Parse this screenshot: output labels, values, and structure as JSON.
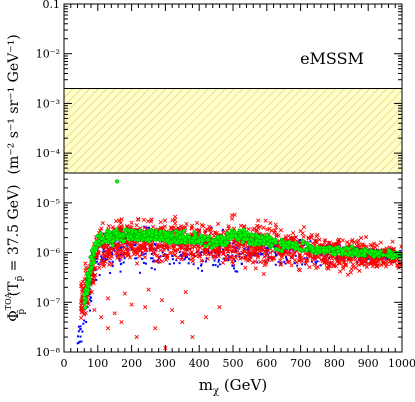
{
  "chart_data": {
    "type": "scatter",
    "title": "",
    "annotation": "eMSSM",
    "xlabel": "m",
    "xlabel_sub": "χ",
    "xlabel_unit": " (GeV)",
    "ylabel_prefix": "Φ",
    "ylabel_prefix_sub": "p̄",
    "ylabel_prefix_sup": "TOA",
    "ylabel_cond": " (T",
    "ylabel_cond_sub": "p̄",
    "ylabel_cond_tail": " = 37.5 GeV)",
    "ylabel_units": "(m⁻² s⁻¹ sr⁻¹ GeV⁻¹)",
    "xlim": [
      0,
      1000
    ],
    "ylim_log10": [
      -8,
      -1
    ],
    "y_scale": "log",
    "x_ticks": [
      0,
      100,
      200,
      300,
      400,
      500,
      600,
      700,
      800,
      900,
      1000
    ],
    "y_tick_labels": [
      {
        "value": 0.1,
        "label": "0.1"
      },
      {
        "value": 0.01,
        "label": "10⁻²"
      },
      {
        "value": 0.001,
        "label": "10⁻³"
      },
      {
        "value": 0.0001,
        "label": "10⁻⁴"
      },
      {
        "value": 1e-05,
        "label": "10⁻⁵"
      },
      {
        "value": 1e-06,
        "label": "10⁻⁶"
      },
      {
        "value": 1e-07,
        "label": "10⁻⁷"
      },
      {
        "value": 1e-08,
        "label": "10⁻⁸"
      }
    ],
    "band": {
      "y_low": 3.98e-05,
      "y_high": 0.002
    },
    "colors": {
      "annotation": "#ff00ff",
      "band_fill": "#ffffcc",
      "band_hatch": "#e8c85a",
      "red": "#ff0000",
      "blue": "#0000ff",
      "green": "#00ff00",
      "green_ring": "#00a000"
    },
    "series": [
      {
        "marker": "cross",
        "envelope_upper": [
          [
            50,
            5e-07
          ],
          [
            75,
            1.3e-06
          ],
          [
            100,
            4.5e-06
          ],
          [
            130,
            6.5e-06
          ],
          [
            200,
            6.8e-06
          ],
          [
            300,
            6.5e-06
          ],
          [
            400,
            5.8e-06
          ],
          [
            480,
            4.5e-06
          ],
          [
            495,
            7e-06
          ],
          [
            550,
            6.8e-06
          ],
          [
            700,
            4.5e-06
          ],
          [
            850,
            2.8e-06
          ],
          [
            1000,
            1.8e-06
          ]
        ],
        "envelope_lower": [
          [
            50,
            2.5e-08
          ],
          [
            80,
            5e-08
          ],
          [
            100,
            3.5e-07
          ],
          [
            200,
            4.5e-07
          ],
          [
            300,
            4.5e-07
          ],
          [
            400,
            4e-07
          ],
          [
            480,
            4e-07
          ],
          [
            600,
            3e-07
          ],
          [
            800,
            3e-07
          ],
          [
            1000,
            3.5e-07
          ]
        ],
        "sparse_tail": [
          [
            90,
            7e-08
          ],
          [
            110,
            5e-08
          ],
          [
            130,
            3e-08
          ],
          [
            150,
            6e-08
          ],
          [
            170,
            4e-08
          ],
          [
            200,
            9e-08
          ],
          [
            215,
            2e-08
          ],
          [
            240,
            8e-08
          ],
          [
            270,
            3e-08
          ],
          [
            300,
            1.2e-08
          ],
          [
            320,
            7e-08
          ],
          [
            350,
            4e-08
          ],
          [
            380,
            2e-08
          ],
          [
            420,
            5e-08
          ],
          [
            460,
            8e-08
          ],
          [
            130,
            1.2e-07
          ],
          [
            180,
            1.5e-07
          ],
          [
            250,
            1.8e-07
          ],
          [
            290,
            1.1e-07
          ],
          [
            360,
            1.6e-07
          ]
        ]
      },
      {
        "marker": "square",
        "envelope_upper": [
          [
            40,
            3e-08
          ],
          [
            70,
            6e-07
          ],
          [
            100,
            3.5e-06
          ],
          [
            150,
            4.5e-06
          ],
          [
            300,
            4.5e-06
          ],
          [
            500,
            3.5e-06
          ],
          [
            700,
            2.5e-06
          ],
          [
            1000,
            1.3e-06
          ]
        ],
        "envelope_lower": [
          [
            40,
            1e-08
          ],
          [
            70,
            1.5e-08
          ],
          [
            100,
            2.5e-07
          ],
          [
            200,
            3e-07
          ],
          [
            400,
            3e-07
          ],
          [
            600,
            4e-07
          ],
          [
            800,
            5e-07
          ],
          [
            1000,
            6e-07
          ]
        ]
      },
      {
        "marker": "ring",
        "envelope_upper": [
          [
            60,
            2e-07
          ],
          [
            80,
            1.5e-06
          ],
          [
            100,
            2.8e-06
          ],
          [
            150,
            3.5e-06
          ],
          [
            300,
            3.2e-06
          ],
          [
            480,
            2.5e-06
          ],
          [
            500,
            3.5e-06
          ],
          [
            700,
            1.8e-06
          ],
          [
            1000,
            1.1e-06
          ]
        ],
        "envelope_lower": [
          [
            60,
            5e-08
          ],
          [
            80,
            2e-07
          ],
          [
            100,
            1.1e-06
          ],
          [
            200,
            1.5e-06
          ],
          [
            300,
            1.4e-06
          ],
          [
            480,
            1.1e-06
          ],
          [
            500,
            1.4e-06
          ],
          [
            700,
            9e-07
          ],
          [
            1000,
            7e-07
          ]
        ],
        "outliers": [
          [
            157,
            2.7e-05
          ],
          [
            83,
            1.1e-06
          ],
          [
            75,
            4.5e-07
          ],
          [
            68,
            1.5e-07
          ]
        ]
      }
    ]
  }
}
